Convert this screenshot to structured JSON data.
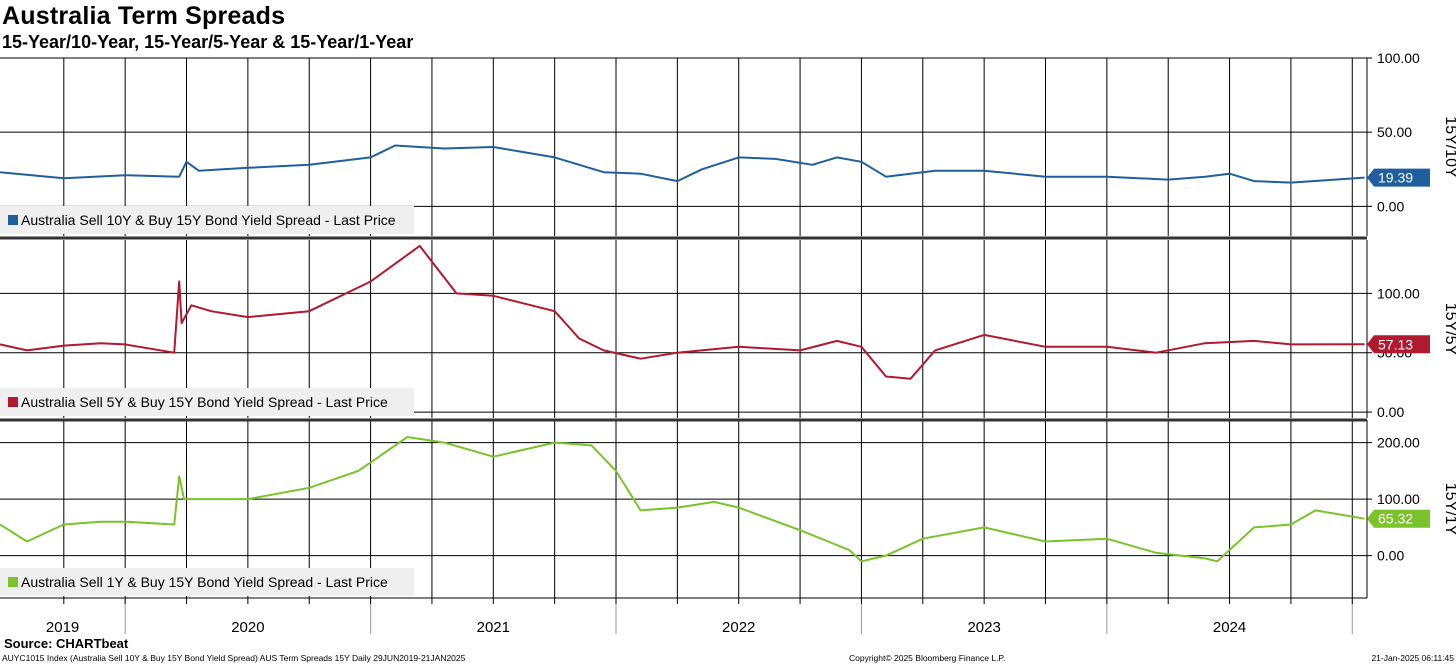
{
  "title": "Australia Term Spreads",
  "subtitle": "15-Year/10-Year, 15-Year/5-Year & 15-Year/1-Year",
  "footer": {
    "source": "Source: CHARTbeat",
    "ticker": "AUYC1015 Index (Australia Sell 10Y & Buy 15Y Bond Yield Spread) AUS Term Spreads 15Y  Daily 29JUN2019-21JAN2025",
    "copyright": "Copyright© 2025 Bloomberg Finance L.P.",
    "date": "21-Jan-2025 06:11:45"
  },
  "chart_data": [
    {
      "type": "line",
      "panel_label": "15Y/10Y",
      "legend": "Australia Sell 10Y & Buy 15Y Bond Yield Spread - Last Price",
      "color": "#1f5f9e",
      "ylim": [
        -20,
        100
      ],
      "yticks": [
        0,
        50,
        100
      ],
      "ytick_labels": [
        "0.00",
        "50.00",
        "100.00"
      ],
      "last_value": 19.39,
      "last_label": "19.39",
      "x": [
        2019.49,
        2019.75,
        2020.0,
        2020.22,
        2020.25,
        2020.3,
        2020.5,
        2020.75,
        2021.0,
        2021.1,
        2021.3,
        2021.5,
        2021.75,
        2021.95,
        2022.1,
        2022.25,
        2022.35,
        2022.5,
        2022.65,
        2022.8,
        2022.9,
        2023.0,
        2023.1,
        2023.3,
        2023.5,
        2023.75,
        2024.0,
        2024.25,
        2024.4,
        2024.5,
        2024.6,
        2024.75,
        2025.05
      ],
      "y": [
        23,
        19,
        21,
        20,
        30,
        24,
        26,
        28,
        33,
        41,
        39,
        40,
        33,
        23,
        22,
        17,
        25,
        33,
        32,
        28,
        33,
        30,
        20,
        24,
        24,
        20,
        20,
        18,
        20,
        22,
        17,
        16,
        19.39
      ]
    },
    {
      "type": "line",
      "panel_label": "15Y/5Y",
      "legend": "Australia Sell 5Y & Buy 15Y Bond Yield Spread - Last Price",
      "color": "#b0192e",
      "ylim": [
        -5,
        145
      ],
      "yticks": [
        0,
        50,
        100
      ],
      "ytick_labels": [
        "0.00",
        "50.00",
        "100.00"
      ],
      "last_value": 57.13,
      "last_label": "57.13",
      "x": [
        2019.49,
        2019.6,
        2019.75,
        2019.9,
        2020.0,
        2020.2,
        2020.22,
        2020.23,
        2020.27,
        2020.35,
        2020.5,
        2020.75,
        2021.0,
        2021.2,
        2021.35,
        2021.5,
        2021.75,
        2021.85,
        2021.95,
        2022.1,
        2022.25,
        2022.5,
        2022.75,
        2022.9,
        2023.0,
        2023.1,
        2023.2,
        2023.3,
        2023.5,
        2023.75,
        2024.0,
        2024.2,
        2024.4,
        2024.6,
        2024.75,
        2025.05
      ],
      "y": [
        57,
        52,
        56,
        58,
        57,
        50,
        110,
        75,
        90,
        85,
        80,
        85,
        110,
        140,
        100,
        98,
        85,
        62,
        52,
        45,
        50,
        55,
        52,
        60,
        55,
        30,
        28,
        52,
        65,
        55,
        55,
        50,
        58,
        60,
        57,
        57.13
      ]
    },
    {
      "type": "line",
      "panel_label": "15Y/1Y",
      "legend": "Australia Sell 1Y & Buy 15Y Bond Yield Spread - Last Price",
      "color": "#7ac32a",
      "ylim": [
        -75,
        240
      ],
      "yticks": [
        0,
        100,
        200
      ],
      "ytick_labels": [
        "0.00",
        "100.00",
        "200.00"
      ],
      "last_value": 65.32,
      "last_label": "65.32",
      "x": [
        2019.49,
        2019.6,
        2019.75,
        2019.9,
        2020.0,
        2020.2,
        2020.22,
        2020.24,
        2020.3,
        2020.5,
        2020.75,
        2020.95,
        2021.15,
        2021.3,
        2021.5,
        2021.75,
        2021.9,
        2022.0,
        2022.1,
        2022.25,
        2022.4,
        2022.5,
        2022.75,
        2022.95,
        2023.0,
        2023.1,
        2023.25,
        2023.5,
        2023.75,
        2024.0,
        2024.2,
        2024.4,
        2024.45,
        2024.6,
        2024.75,
        2024.85,
        2025.05
      ],
      "y": [
        55,
        25,
        55,
        60,
        60,
        55,
        140,
        100,
        100,
        100,
        120,
        150,
        210,
        200,
        175,
        200,
        195,
        150,
        80,
        85,
        95,
        85,
        45,
        10,
        -10,
        0,
        30,
        50,
        25,
        30,
        5,
        -5,
        -10,
        50,
        55,
        80,
        65.32
      ]
    }
  ],
  "x_axis": {
    "labels": [
      "2019",
      "2020",
      "2021",
      "2022",
      "2023",
      "2024"
    ],
    "range": [
      2019.49,
      2025.06
    ]
  }
}
